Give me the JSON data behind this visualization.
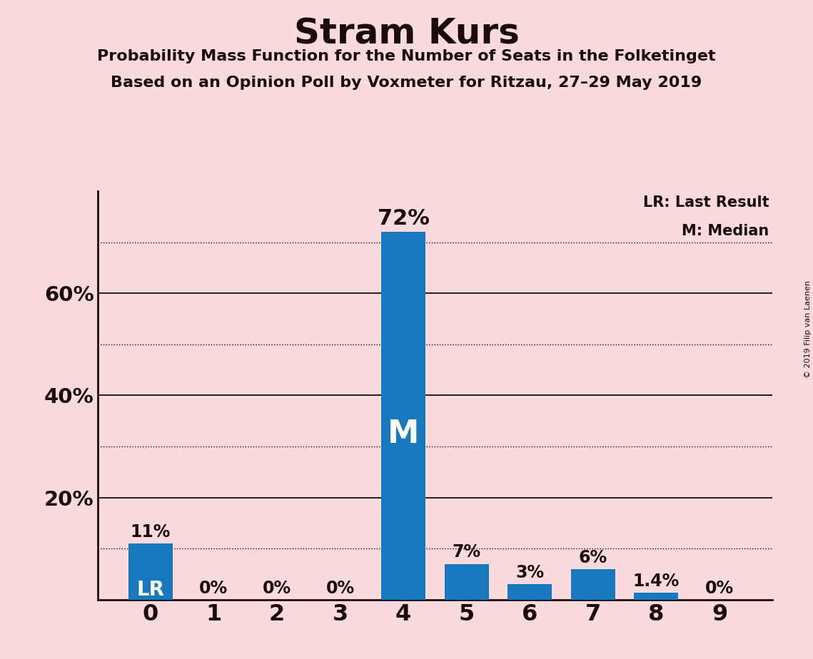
{
  "title": "Stram Kurs",
  "subtitle1": "Probability Mass Function for the Number of Seats in the Folketinget",
  "subtitle2": "Based on an Opinion Poll by Voxmeter for Ritzau, 27–29 May 2019",
  "copyright": "© 2019 Filip van Laenen",
  "categories": [
    0,
    1,
    2,
    3,
    4,
    5,
    6,
    7,
    8,
    9
  ],
  "values": [
    0.11,
    0.0,
    0.0,
    0.0,
    0.72,
    0.07,
    0.03,
    0.06,
    0.014,
    0.0
  ],
  "labels": [
    "11%",
    "0%",
    "0%",
    "0%",
    "72%",
    "7%",
    "3%",
    "6%",
    "1.4%",
    "0%"
  ],
  "bar_color": "#1878be",
  "background_color": "#fadadd",
  "title_color": "#1a0a0a",
  "lr_index": 0,
  "median_index": 4,
  "lr_label": "LR",
  "median_label": "M",
  "legend_lr": "LR: Last Result",
  "legend_m": "M: Median",
  "ylim": [
    0,
    0.8
  ],
  "yticks": [
    0.0,
    0.2,
    0.4,
    0.6
  ],
  "ytick_labels": [
    "",
    "20%",
    "40%",
    "60%"
  ],
  "dotted_lines": [
    0.1,
    0.3,
    0.5,
    0.7
  ],
  "solid_lines": [
    0.2,
    0.4,
    0.6
  ],
  "figsize": [
    11.39,
    9.24
  ],
  "dpi": 100
}
